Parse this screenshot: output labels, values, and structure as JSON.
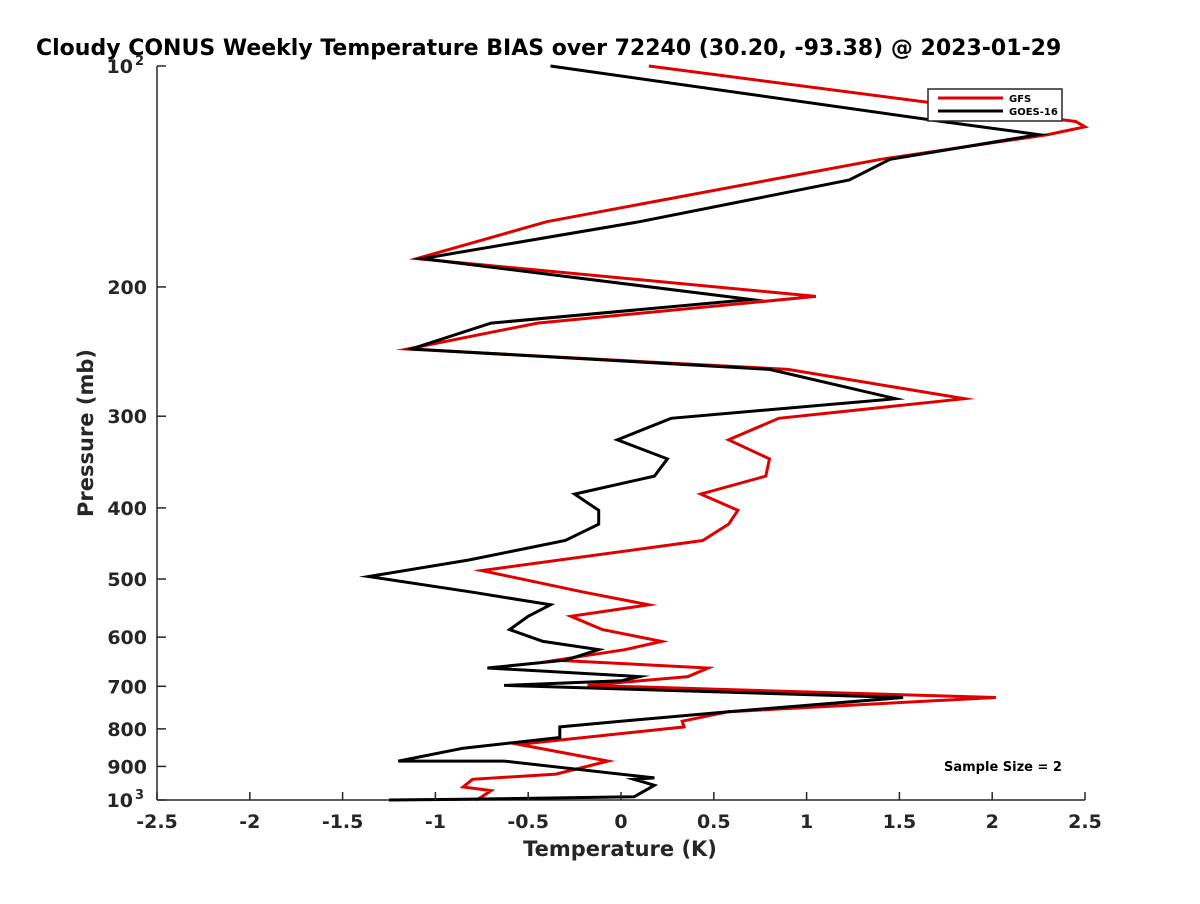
{
  "chart_data": {
    "type": "line",
    "title": "Cloudy CONUS Weekly Temperature BIAS over 72240 (30.20, -93.38) @ 2023-01-29",
    "xlabel": "Temperature (K)",
    "ylabel": "Pressure (mb)",
    "xlim": [
      -2.5,
      2.5
    ],
    "ylim": [
      100,
      1000
    ],
    "yscale": "log",
    "y_reversed": true,
    "x_ticks": [
      -2.5,
      -2,
      -1.5,
      -1,
      -0.5,
      0,
      0.5,
      1,
      1.5,
      2,
      2.5
    ],
    "x_tick_labels": [
      "-2.5",
      "-2",
      "-1.5",
      "-1",
      "-0.5",
      "0",
      "0.5",
      "1",
      "1.5",
      "2",
      "2.5"
    ],
    "y_ticks": [
      100,
      200,
      300,
      400,
      500,
      600,
      700,
      800,
      900,
      1000
    ],
    "y_tick_labels": [
      {
        "base": "10",
        "exp": "2"
      },
      {
        "base": "200",
        "exp": ""
      },
      {
        "base": "300",
        "exp": ""
      },
      {
        "base": "400",
        "exp": ""
      },
      {
        "base": "500",
        "exp": ""
      },
      {
        "base": "600",
        "exp": ""
      },
      {
        "base": "700",
        "exp": ""
      },
      {
        "base": "800",
        "exp": ""
      },
      {
        "base": "900",
        "exp": ""
      },
      {
        "base": "10",
        "exp": "3"
      }
    ],
    "legend_position": "top-right",
    "annotation": "Sample Size = 2",
    "series": [
      {
        "name": "GFS",
        "color": "#e00000",
        "points": [
          [
            0.15,
            100
          ],
          [
            2.45,
            119
          ],
          [
            2.5,
            121
          ],
          [
            2.3,
            124
          ],
          [
            1.4,
            134
          ],
          [
            0.8,
            143
          ],
          [
            -0.4,
            163
          ],
          [
            -1.1,
            183
          ],
          [
            1.05,
            206
          ],
          [
            -0.45,
            224
          ],
          [
            -1.15,
            243
          ],
          [
            0.9,
            259
          ],
          [
            1.85,
            284
          ],
          [
            0.85,
            302
          ],
          [
            0.58,
            323
          ],
          [
            0.8,
            343
          ],
          [
            0.78,
            362
          ],
          [
            0.43,
            383
          ],
          [
            0.63,
            403
          ],
          [
            0.58,
            421
          ],
          [
            0.44,
            443
          ],
          [
            -0.75,
            487
          ],
          [
            -0.2,
            521
          ],
          [
            0.15,
            542
          ],
          [
            -0.27,
            562
          ],
          [
            -0.1,
            586
          ],
          [
            0.22,
            608
          ],
          [
            0.02,
            624
          ],
          [
            -0.35,
            645
          ],
          [
            0.47,
            661
          ],
          [
            0.36,
            679
          ],
          [
            -0.18,
            698
          ],
          [
            2.02,
            725
          ],
          [
            0.58,
            758
          ],
          [
            0.33,
            781
          ],
          [
            0.34,
            795
          ],
          [
            -0.55,
            840
          ],
          [
            -0.07,
            885
          ],
          [
            -0.35,
            922
          ],
          [
            -0.8,
            937
          ],
          [
            -0.85,
            960
          ],
          [
            -0.7,
            971
          ],
          [
            -0.75,
            990
          ],
          [
            -0.78,
            1000
          ]
        ]
      },
      {
        "name": "GOES-16",
        "color": "#000000",
        "points": [
          [
            -0.38,
            100
          ],
          [
            1.73,
            119
          ],
          [
            2.25,
            124
          ],
          [
            1.45,
            134
          ],
          [
            1.23,
            143
          ],
          [
            0.1,
            163
          ],
          [
            -1.07,
            183
          ],
          [
            0.7,
            208
          ],
          [
            -0.7,
            224
          ],
          [
            -1.13,
            243
          ],
          [
            0.8,
            259
          ],
          [
            1.48,
            284
          ],
          [
            0.27,
            302
          ],
          [
            -0.02,
            323
          ],
          [
            0.25,
            343
          ],
          [
            0.18,
            362
          ],
          [
            -0.25,
            383
          ],
          [
            -0.12,
            403
          ],
          [
            -0.12,
            421
          ],
          [
            -0.3,
            443
          ],
          [
            -0.82,
            471
          ],
          [
            -1.36,
            496
          ],
          [
            -0.8,
            521
          ],
          [
            -0.38,
            542
          ],
          [
            -0.5,
            562
          ],
          [
            -0.6,
            586
          ],
          [
            -0.42,
            608
          ],
          [
            -0.12,
            624
          ],
          [
            -0.3,
            645
          ],
          [
            -0.72,
            661
          ],
          [
            0.1,
            679
          ],
          [
            0.0,
            688
          ],
          [
            -0.63,
            698
          ],
          [
            1.52,
            725
          ],
          [
            0.58,
            758
          ],
          [
            0.0,
            781
          ],
          [
            -0.33,
            795
          ],
          [
            -0.33,
            822
          ],
          [
            -0.85,
            850
          ],
          [
            -1.2,
            885
          ],
          [
            -0.63,
            885
          ],
          [
            0.18,
            933
          ],
          [
            0.07,
            937
          ],
          [
            0.18,
            955
          ],
          [
            0.13,
            971
          ],
          [
            0.07,
            990
          ],
          [
            -0.9,
            998
          ],
          [
            -1.25,
            1000
          ]
        ]
      }
    ]
  }
}
